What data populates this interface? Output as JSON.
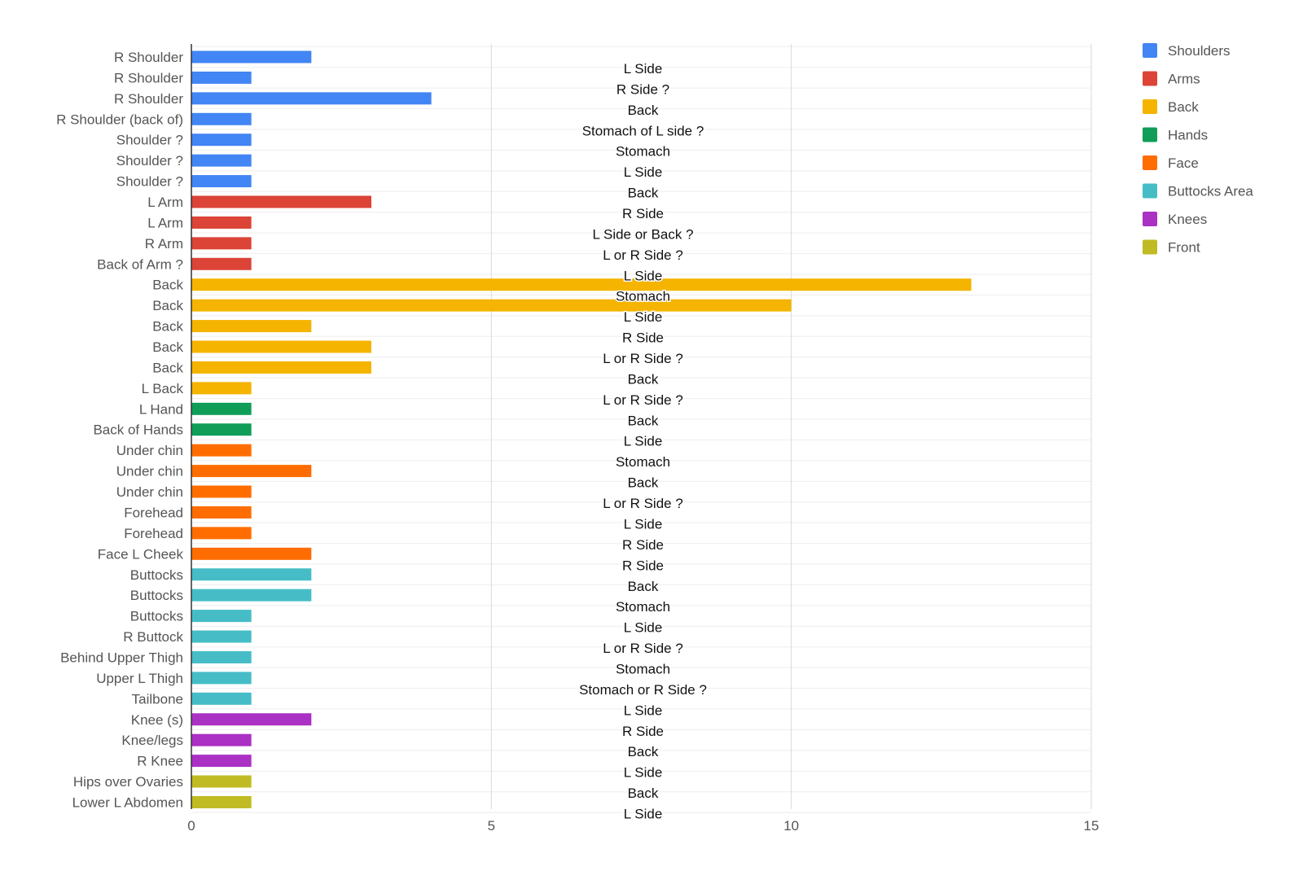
{
  "chart_data": {
    "type": "bar",
    "orientation": "horizontal",
    "grid": true,
    "legend_position": "right",
    "xlim": [
      0,
      15
    ],
    "x_ticks": [
      0,
      5,
      10,
      15
    ],
    "x_tick_labels": [
      "0",
      "5",
      "10",
      "15"
    ],
    "groups": [
      {
        "name": "Shoulders",
        "color": "#4285F4"
      },
      {
        "name": "Arms",
        "color": "#DB4437"
      },
      {
        "name": "Back",
        "color": "#F4B400"
      },
      {
        "name": "Hands",
        "color": "#0F9D58"
      },
      {
        "name": "Face",
        "color": "#FF6D00"
      },
      {
        "name": "Buttocks Area",
        "color": "#46BDC6"
      },
      {
        "name": "Knees",
        "color": "#AB30C4"
      },
      {
        "name": "Front",
        "color": "#C0BB22"
      }
    ],
    "categories": [
      "R Shoulder",
      "R Shoulder",
      "R Shoulder",
      "R Shoulder (back of)",
      "Shoulder ?",
      "Shoulder ?",
      "Shoulder ?",
      "L Arm",
      "L Arm",
      "R Arm",
      "Back of Arm ?",
      "Back",
      "Back",
      "Back",
      "Back",
      "Back",
      "L Back",
      "L Hand",
      "Back of Hands",
      "Under chin",
      "Under chin",
      "Under chin",
      "Forehead",
      "Forehead",
      "Face L Cheek",
      "Buttocks",
      "Buttocks",
      "Buttocks",
      "R Buttock",
      "Behind Upper Thigh",
      "Upper L Thigh",
      "Tailbone",
      "Knee (s)",
      "Knee/legs",
      "R Knee",
      "Hips over Ovaries",
      "Lower L Abdomen"
    ],
    "values": [
      2,
      1,
      4,
      1,
      1,
      1,
      1,
      3,
      1,
      1,
      1,
      13,
      10,
      2,
      3,
      3,
      1,
      1,
      1,
      1,
      2,
      1,
      1,
      1,
      2,
      2,
      2,
      1,
      1,
      1,
      1,
      1,
      2,
      1,
      1,
      1,
      1
    ],
    "group_index": [
      0,
      0,
      0,
      0,
      0,
      0,
      0,
      1,
      1,
      1,
      1,
      2,
      2,
      2,
      2,
      2,
      2,
      3,
      3,
      4,
      4,
      4,
      4,
      4,
      4,
      5,
      5,
      5,
      5,
      5,
      5,
      5,
      6,
      6,
      6,
      7,
      7
    ],
    "annotations": [
      "L Side",
      "R Side ?",
      "Back",
      "Stomach of L side ?",
      "Stomach",
      "L Side",
      "Back",
      "R Side",
      "L Side or Back ?",
      "L or R Side ?",
      "L Side",
      "Stomach",
      "L Side",
      "R Side",
      "L or R Side ?",
      "Back",
      "L or R Side ?",
      "Back",
      "L Side",
      "Stomach",
      "Back",
      "L or R Side ?",
      "L Side",
      "R Side",
      "R Side",
      "Back",
      "Stomach",
      "L Side",
      "L or R Side ?",
      "Stomach",
      "Stomach or R Side ?",
      "L Side",
      "R Side",
      "Back",
      "L Side",
      "Back",
      "L Side"
    ],
    "title": "",
    "xlabel": "",
    "ylabel": ""
  }
}
